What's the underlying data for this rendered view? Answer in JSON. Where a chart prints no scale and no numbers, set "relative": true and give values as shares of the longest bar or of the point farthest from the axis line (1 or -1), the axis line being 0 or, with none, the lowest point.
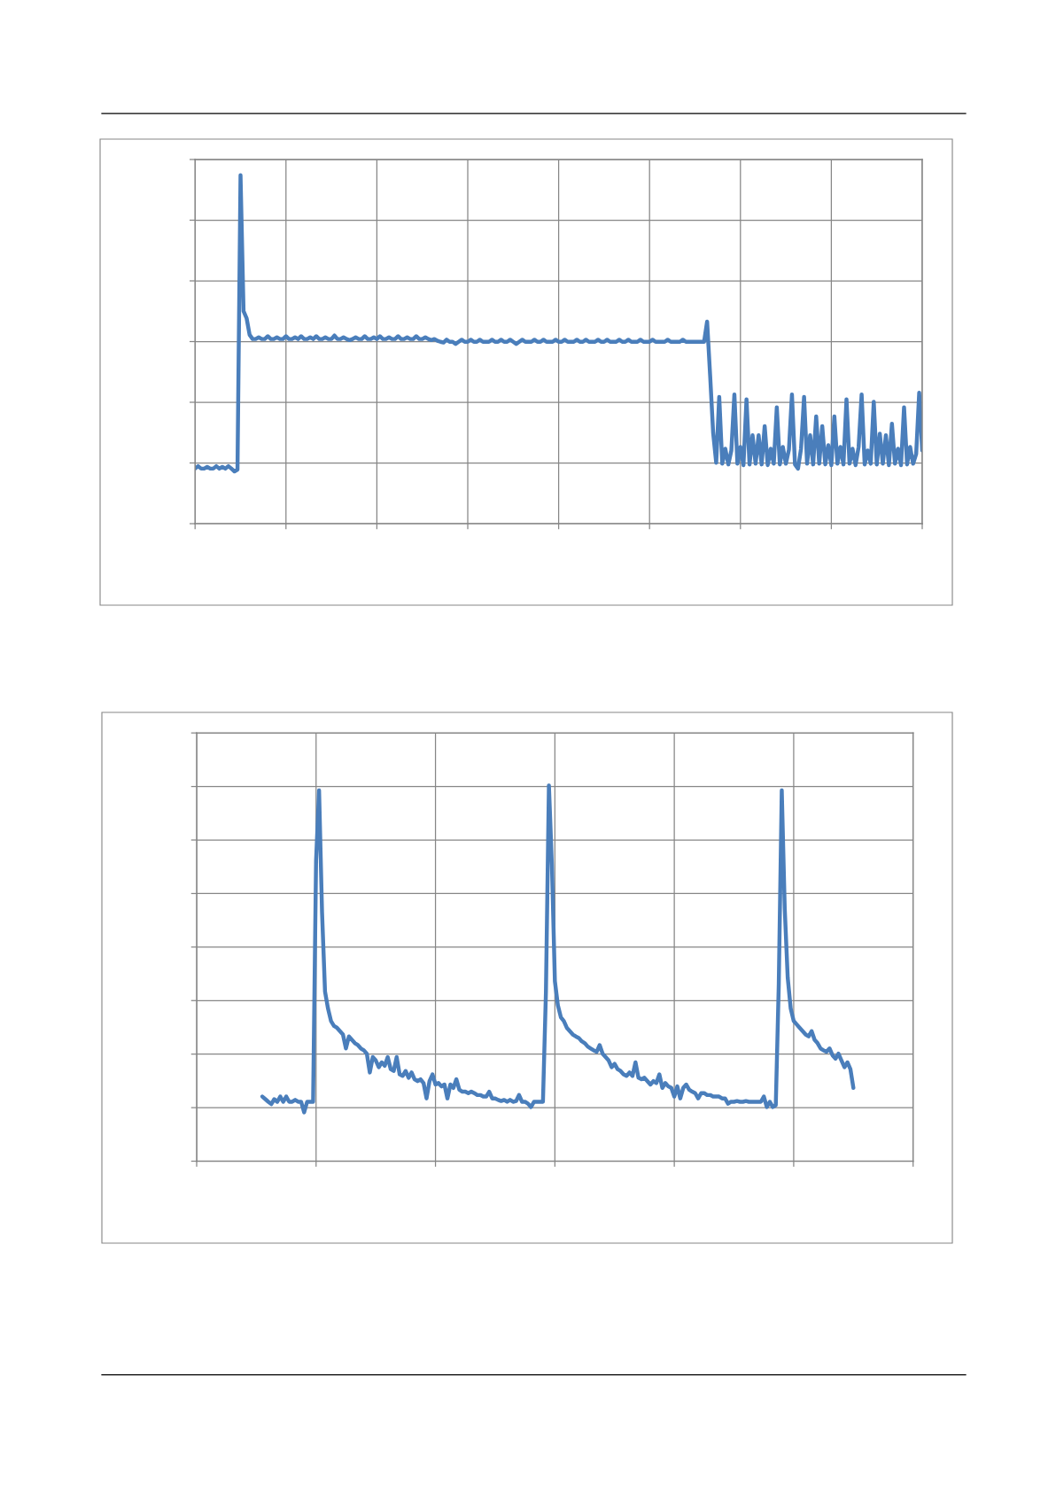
{
  "chart_data": [
    {
      "type": "line",
      "relative": true,
      "grid": true,
      "marker": "none",
      "line_style": "solid",
      "categories": [
        null,
        null,
        null,
        null,
        null,
        null,
        null,
        null,
        null,
        null,
        null,
        null,
        null,
        null,
        null,
        null,
        null,
        null,
        null,
        null,
        null,
        null,
        null,
        null,
        null,
        null,
        null,
        null,
        null,
        null,
        null,
        null,
        null,
        null,
        null,
        null,
        null,
        null,
        null,
        null,
        null,
        null,
        null,
        null,
        null,
        null,
        null,
        null,
        null,
        null,
        null,
        null,
        null,
        null,
        null,
        null,
        null,
        null,
        null,
        null,
        null,
        null,
        null,
        null,
        null,
        null,
        null,
        null,
        null,
        null,
        null,
        null,
        null,
        null,
        null,
        null,
        null,
        null,
        null,
        null,
        null,
        null,
        null,
        null,
        null,
        null,
        null,
        null,
        null,
        null,
        null,
        null,
        null,
        null,
        null,
        null,
        null,
        null,
        null,
        null,
        null,
        null,
        null,
        null,
        null,
        null,
        null,
        null,
        null,
        null,
        null,
        null,
        null,
        null,
        null,
        null,
        null,
        null,
        null,
        null,
        null,
        null,
        null,
        null,
        null,
        null,
        null,
        null,
        null,
        null,
        null,
        null,
        null,
        null,
        null,
        null,
        null,
        null,
        null,
        null,
        null,
        null,
        null,
        null,
        null,
        null,
        null,
        null,
        null,
        null,
        null,
        null,
        null,
        null,
        null,
        null,
        null,
        null,
        null,
        null,
        null,
        null,
        null,
        null,
        null,
        null,
        null,
        null,
        null,
        null,
        null,
        null,
        null,
        null,
        null,
        null,
        null,
        null,
        null,
        null,
        null,
        null,
        null,
        null,
        null,
        null,
        null,
        null,
        null,
        null,
        null,
        null,
        null,
        null,
        null,
        null,
        null,
        null,
        null,
        null,
        null,
        null,
        null,
        null,
        null,
        null,
        null,
        null,
        null,
        null,
        null,
        null,
        null,
        null,
        null,
        null,
        null,
        null,
        null,
        null,
        null,
        null,
        null,
        null,
        null,
        null,
        null,
        null,
        null,
        null,
        null,
        null,
        null,
        null,
        null,
        null,
        null,
        null,
        null,
        null,
        null
      ],
      "series": [
        {
          "color": "#4a7ebb",
          "values": [
            0.158,
            0.165,
            0.158,
            0.158,
            0.163,
            0.158,
            0.158,
            0.165,
            0.158,
            0.163,
            0.158,
            0.165,
            0.158,
            0.15,
            0.155,
            1.0,
            0.61,
            0.59,
            0.542,
            0.53,
            0.53,
            0.535,
            0.53,
            0.53,
            0.538,
            0.53,
            0.53,
            0.535,
            0.53,
            0.53,
            0.538,
            0.53,
            0.53,
            0.535,
            0.53,
            0.538,
            0.53,
            0.53,
            0.535,
            0.53,
            0.538,
            0.53,
            0.53,
            0.535,
            0.53,
            0.53,
            0.54,
            0.53,
            0.53,
            0.535,
            0.53,
            0.527,
            0.53,
            0.535,
            0.53,
            0.53,
            0.538,
            0.53,
            0.53,
            0.535,
            0.53,
            0.538,
            0.53,
            0.53,
            0.535,
            0.53,
            0.53,
            0.538,
            0.53,
            0.53,
            0.535,
            0.53,
            0.53,
            0.538,
            0.53,
            0.53,
            0.535,
            0.53,
            0.527,
            0.53,
            0.525,
            0.522,
            0.52,
            0.528,
            0.522,
            0.522,
            0.516,
            0.522,
            0.528,
            0.522,
            0.522,
            0.528,
            0.522,
            0.522,
            0.528,
            0.522,
            0.522,
            0.522,
            0.528,
            0.522,
            0.522,
            0.528,
            0.522,
            0.522,
            0.528,
            0.522,
            0.516,
            0.522,
            0.528,
            0.522,
            0.522,
            0.522,
            0.528,
            0.522,
            0.522,
            0.528,
            0.522,
            0.522,
            0.522,
            0.528,
            0.522,
            0.522,
            0.528,
            0.522,
            0.522,
            0.522,
            0.528,
            0.522,
            0.522,
            0.528,
            0.522,
            0.522,
            0.522,
            0.528,
            0.522,
            0.522,
            0.528,
            0.522,
            0.522,
            0.522,
            0.528,
            0.522,
            0.522,
            0.528,
            0.522,
            0.522,
            0.522,
            0.528,
            0.522,
            0.522,
            0.522,
            0.528,
            0.522,
            0.522,
            0.522,
            0.522,
            0.528,
            0.522,
            0.522,
            0.522,
            0.522,
            0.528,
            0.522,
            0.522,
            0.522,
            0.522,
            0.522,
            0.522,
            0.522,
            0.58,
            0.425,
            0.26,
            0.175,
            0.364,
            0.172,
            0.215,
            0.17,
            0.21,
            0.371,
            0.172,
            0.22,
            0.168,
            0.357,
            0.17,
            0.254,
            0.172,
            0.254,
            0.17,
            0.28,
            0.168,
            0.215,
            0.172,
            0.334,
            0.17,
            0.22,
            0.172,
            0.212,
            0.371,
            0.17,
            0.158,
            0.215,
            0.364,
            0.172,
            0.254,
            0.17,
            0.308,
            0.172,
            0.28,
            0.17,
            0.225,
            0.168,
            0.308,
            0.172,
            0.22,
            0.17,
            0.357,
            0.172,
            0.215,
            0.168,
            0.22,
            0.371,
            0.17,
            0.21,
            0.172,
            0.35,
            0.17,
            0.258,
            0.172,
            0.254,
            0.168,
            0.287,
            0.172,
            0.215,
            0.168,
            0.334,
            0.17,
            0.22,
            0.172,
            0.2,
            0.376,
            0.21
          ]
        }
      ]
    },
    {
      "type": "line",
      "relative": true,
      "grid": true,
      "marker": "none",
      "line_style": "solid",
      "categories": [
        null,
        null,
        null,
        null,
        null,
        null,
        null,
        null,
        null,
        null,
        null,
        null,
        null,
        null,
        null,
        null,
        null,
        null,
        null,
        null,
        null,
        null,
        null,
        null,
        null,
        null,
        null,
        null,
        null,
        null,
        null,
        null,
        null,
        null,
        null,
        null,
        null,
        null,
        null,
        null,
        null,
        null,
        null,
        null,
        null,
        null,
        null,
        null,
        null,
        null,
        null,
        null,
        null,
        null,
        null,
        null,
        null,
        null,
        null,
        null,
        null,
        null,
        null,
        null,
        null,
        null,
        null,
        null,
        null,
        null,
        null,
        null,
        null,
        null,
        null,
        null,
        null,
        null,
        null,
        null,
        null,
        null,
        null,
        null,
        null,
        null,
        null,
        null,
        null,
        null,
        null,
        null,
        null,
        null,
        null,
        null,
        null,
        null,
        null,
        null,
        null,
        null,
        null,
        null,
        null,
        null,
        null,
        null,
        null,
        null,
        null,
        null,
        null,
        null,
        null,
        null,
        null,
        null,
        null,
        null,
        null,
        null,
        null,
        null,
        null,
        null,
        null,
        null,
        null,
        null,
        null,
        null,
        null,
        null,
        null,
        null,
        null,
        null,
        null,
        null,
        null,
        null,
        null,
        null,
        null,
        null,
        null,
        null,
        null,
        null,
        null,
        null,
        null,
        null,
        null,
        null,
        null,
        null,
        null,
        null,
        null,
        null,
        null,
        null,
        null,
        null,
        null,
        null,
        null,
        null,
        null,
        null,
        null,
        null,
        null,
        null,
        null,
        null,
        null,
        null,
        null,
        null,
        null,
        null,
        null,
        null,
        null,
        null,
        null,
        null,
        null,
        null,
        null,
        null,
        null,
        null,
        null,
        null,
        null,
        null,
        null,
        null,
        null,
        null,
        null,
        null,
        null,
        null,
        null,
        null,
        null,
        null,
        null,
        null,
        null,
        null,
        null,
        null,
        null,
        null,
        null,
        null,
        null,
        null,
        null,
        null,
        null,
        null,
        null,
        null,
        null,
        null,
        null,
        null,
        null,
        null,
        null,
        null,
        null,
        null,
        null
      ],
      "series": [
        {
          "color": "#4a7ebb",
          "values": [
            null,
            null,
            null,
            null,
            null,
            null,
            null,
            null,
            null,
            null,
            null,
            null,
            null,
            null,
            null,
            null,
            null,
            null,
            null,
            null,
            null,
            null,
            0.172,
            0.165,
            0.158,
            0.152,
            0.165,
            0.158,
            0.172,
            0.158,
            0.172,
            0.158,
            0.158,
            0.163,
            0.158,
            0.158,
            0.13,
            0.158,
            0.158,
            0.158,
            0.8,
            0.987,
            0.662,
            0.451,
            0.406,
            0.373,
            0.36,
            0.355,
            0.346,
            0.337,
            0.3,
            0.332,
            0.323,
            0.314,
            0.309,
            0.3,
            0.295,
            0.286,
            0.236,
            0.277,
            0.268,
            0.25,
            0.263,
            0.254,
            0.277,
            0.245,
            0.24,
            0.277,
            0.231,
            0.227,
            0.24,
            0.222,
            0.236,
            0.218,
            0.213,
            0.218,
            0.208,
            0.167,
            0.213,
            0.231,
            0.204,
            0.208,
            0.199,
            0.204,
            0.167,
            0.204,
            0.195,
            0.218,
            0.19,
            0.185,
            0.185,
            0.181,
            0.185,
            0.181,
            0.176,
            0.176,
            0.172,
            0.172,
            0.185,
            0.167,
            0.167,
            0.163,
            0.16,
            0.163,
            0.158,
            0.163,
            0.158,
            0.16,
            0.176,
            0.158,
            0.158,
            0.153,
            0.144,
            0.158,
            0.158,
            0.158,
            0.158,
            0.45,
            1.0,
            0.79,
            0.479,
            0.415,
            0.383,
            0.373,
            0.355,
            0.346,
            0.337,
            0.332,
            0.328,
            0.319,
            0.314,
            0.305,
            0.3,
            0.295,
            0.291,
            0.309,
            0.286,
            0.277,
            0.268,
            0.25,
            0.259,
            0.245,
            0.24,
            0.231,
            0.227,
            0.236,
            0.227,
            0.263,
            0.222,
            0.218,
            0.222,
            0.213,
            0.204,
            0.213,
            0.208,
            0.231,
            0.195,
            0.208,
            0.199,
            0.195,
            0.172,
            0.199,
            0.167,
            0.195,
            0.204,
            0.19,
            0.185,
            0.181,
            0.167,
            0.181,
            0.181,
            0.176,
            0.176,
            0.172,
            0.172,
            0.172,
            0.167,
            0.167,
            0.153,
            0.158,
            0.158,
            0.16,
            0.158,
            0.158,
            0.16,
            0.158,
            0.158,
            0.158,
            0.158,
            0.158,
            0.172,
            0.144,
            0.158,
            0.144,
            0.149,
            0.47,
            0.987,
            0.672,
            0.488,
            0.406,
            0.373,
            0.364,
            0.355,
            0.346,
            0.337,
            0.332,
            0.346,
            0.323,
            0.314,
            0.3,
            0.295,
            0.291,
            0.3,
            0.282,
            0.273,
            0.286,
            0.268,
            0.25,
            0.263,
            0.245,
            0.195,
            null,
            null,
            null,
            null,
            null,
            null,
            null,
            null,
            null,
            null,
            null,
            null,
            null,
            null,
            null,
            null,
            null,
            null,
            null,
            null
          ]
        }
      ]
    }
  ]
}
